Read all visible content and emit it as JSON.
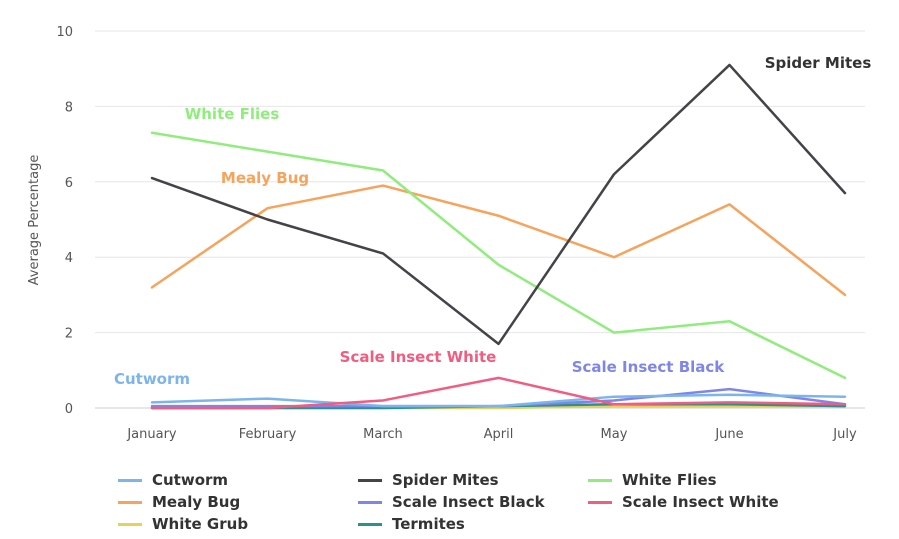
{
  "chart_data": {
    "type": "line",
    "ylabel": "Average Percentage",
    "xlabel": "",
    "ylim": [
      0,
      10
    ],
    "yticks": [
      0,
      2,
      4,
      6,
      8,
      10
    ],
    "grid": true,
    "legend_position": "bottom",
    "categories": [
      "January",
      "February",
      "March",
      "April",
      "May",
      "June",
      "July"
    ],
    "series": [
      {
        "name": "Cutworm",
        "color": "#7cb5ec",
        "values": [
          0.15,
          0.25,
          0.05,
          0.05,
          0.3,
          0.35,
          0.3
        ]
      },
      {
        "name": "Spider Mites",
        "color": "#434348",
        "values": [
          6.1,
          5.0,
          4.1,
          1.7,
          6.2,
          9.1,
          5.7
        ]
      },
      {
        "name": "White Flies",
        "color": "#90ed7d",
        "values": [
          7.3,
          6.8,
          6.3,
          3.8,
          2.0,
          2.3,
          0.8
        ]
      },
      {
        "name": "Mealy Bug",
        "color": "#f7a35c",
        "values": [
          3.2,
          5.3,
          5.9,
          5.1,
          4.0,
          5.4,
          3.0
        ]
      },
      {
        "name": "Scale Insect Black",
        "color": "#8085e9",
        "values": [
          0.05,
          0.05,
          0.05,
          0.05,
          0.2,
          0.5,
          0.1
        ]
      },
      {
        "name": "Scale Insect White",
        "color": "#f15c80",
        "values": [
          0.0,
          0.0,
          0.2,
          0.8,
          0.1,
          0.15,
          0.1
        ]
      },
      {
        "name": "White Grub",
        "color": "#e4d354",
        "values": [
          0.0,
          0.0,
          0.0,
          0.0,
          0.05,
          0.05,
          0.05
        ]
      },
      {
        "name": "Termites",
        "color": "#2b908f",
        "values": [
          0.0,
          0.0,
          0.0,
          0.05,
          0.1,
          0.1,
          0.05
        ]
      }
    ],
    "annotations": [
      {
        "text": "Spider Mites",
        "series": "Spider Mites",
        "color": "#333333"
      },
      {
        "text": "White Flies",
        "series": "White Flies",
        "color": "#90ed7d"
      },
      {
        "text": "Mealy Bug",
        "series": "Mealy Bug",
        "color": "#f7a35c"
      },
      {
        "text": "Scale Insect White",
        "series": "Scale Insect White",
        "color": "#f15c80"
      },
      {
        "text": "Scale Insect Black",
        "series": "Scale Insect Black",
        "color": "#8085e9"
      },
      {
        "text": "Cutworm",
        "series": "Cutworm",
        "color": "#7cb5ec"
      }
    ]
  }
}
